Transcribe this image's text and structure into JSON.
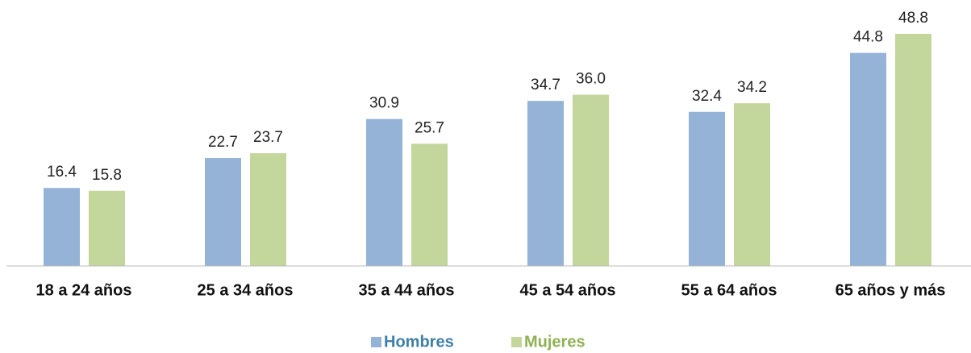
{
  "chart_data": {
    "type": "bar",
    "categories": [
      "18 a 24 años",
      "25 a 34 años",
      "35 a 44 años",
      "45 a 54 años",
      "55 a 64 años",
      "65 años y más"
    ],
    "series": [
      {
        "name": "Hombres",
        "color": "#95b3d7",
        "values": [
          16.4,
          22.7,
          30.9,
          34.7,
          32.4,
          44.8
        ],
        "value_labels": [
          "16.4",
          "22.7",
          "30.9",
          "34.7",
          "32.4",
          "44.8"
        ]
      },
      {
        "name": "Mujeres",
        "color": "#c3d69b",
        "values": [
          15.8,
          23.7,
          25.7,
          36.0,
          34.2,
          48.8
        ],
        "value_labels": [
          "15.8",
          "23.7",
          "25.7",
          "36.0",
          "34.2",
          "48.8"
        ]
      }
    ],
    "legend": "bottom"
  }
}
